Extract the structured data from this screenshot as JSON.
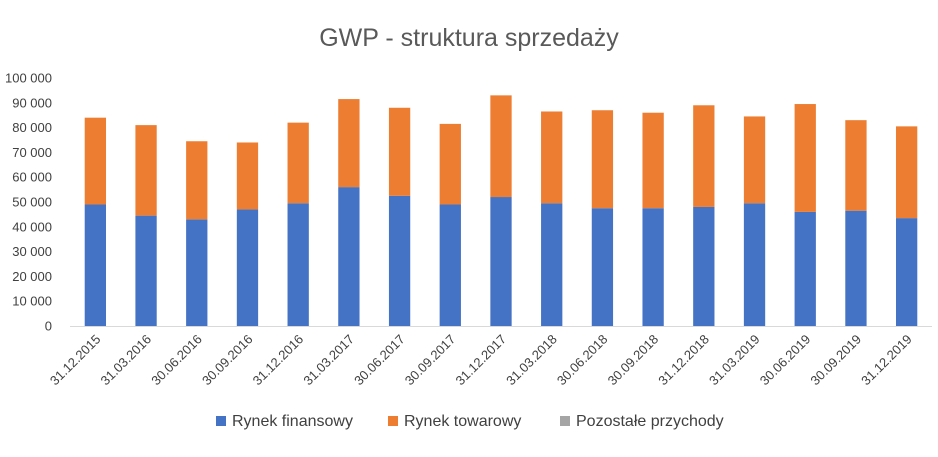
{
  "chart_data": {
    "type": "bar",
    "stacked": true,
    "title": "GWP - struktura sprzedaży",
    "xlabel": "",
    "ylabel": "",
    "ylim": [
      0,
      100000
    ],
    "yticks": [
      "0",
      "10 000",
      "20 000",
      "30 000",
      "40 000",
      "50 000",
      "60 000",
      "70 000",
      "80 000",
      "90 000",
      "100 000"
    ],
    "ytick_values": [
      0,
      10000,
      20000,
      30000,
      40000,
      50000,
      60000,
      70000,
      80000,
      90000,
      100000
    ],
    "grid": false,
    "legend_position": "bottom",
    "categories": [
      "31.12.2015",
      "31.03.2016",
      "30.06.2016",
      "30.09.2016",
      "31.12.2016",
      "31.03.2017",
      "30.06.2017",
      "30.09.2017",
      "31.12.2017",
      "31.03.2018",
      "30.06.2018",
      "30.09.2018",
      "31.12.2018",
      "31.03.2019",
      "30.06.2019",
      "30.09.2019",
      "31.12.2019"
    ],
    "series": [
      {
        "name": "Rynek finansowy",
        "color": "#4472c4",
        "values": [
          49000,
          44500,
          43000,
          47000,
          49500,
          56000,
          52500,
          49000,
          52000,
          49500,
          47500,
          47500,
          48000,
          49500,
          46000,
          46500,
          43500
        ]
      },
      {
        "name": "Rynek towarowy",
        "color": "#ed7d31",
        "values": [
          35000,
          36500,
          31500,
          27000,
          32500,
          35500,
          35500,
          32500,
          41000,
          37000,
          39500,
          38500,
          41000,
          35000,
          43500,
          36500,
          37000
        ]
      },
      {
        "name": "Pozostałe przychody",
        "color": "#a5a5a5",
        "values": [
          0,
          0,
          0,
          0,
          0,
          0,
          0,
          0,
          0,
          0,
          0,
          0,
          0,
          0,
          0,
          0,
          0
        ]
      }
    ]
  }
}
